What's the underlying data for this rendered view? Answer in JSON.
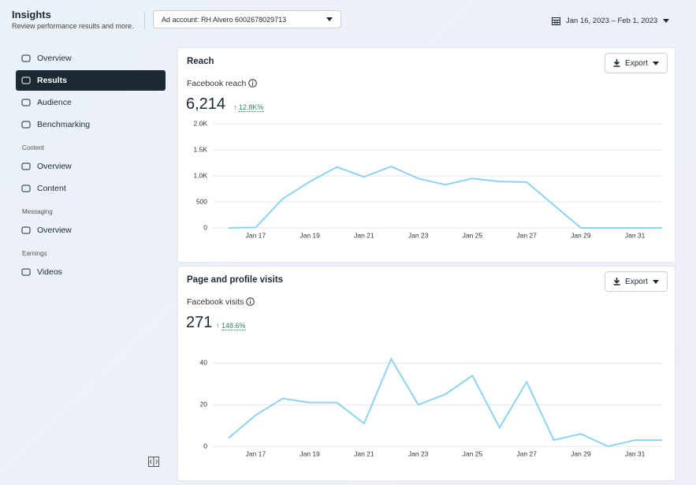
{
  "header": {
    "title": "Insights",
    "subtitle": "Review performance results and more.",
    "ad_account": "Ad account: RH Alvero 6002678029713",
    "date_range": "Jan 16, 2023 – Feb 1, 2023"
  },
  "sidebar": {
    "selected": "Results",
    "sections": [
      {
        "items": [
          "Overview",
          "Results",
          "Audience",
          "Benchmarking"
        ]
      },
      {
        "heading": "Content",
        "items": [
          "Overview",
          "Content"
        ]
      },
      {
        "heading": "Messaging",
        "items": [
          "Overview"
        ]
      },
      {
        "heading": "Earnings",
        "items": [
          "Videos"
        ]
      }
    ]
  },
  "chart_data": [
    {
      "type": "line",
      "title": "Reach",
      "export": "Export",
      "subtitle": "Facebook reach",
      "total": "6,214",
      "change": "12.8K%",
      "color": "#8dd3f2",
      "grid": true,
      "categories": [
        null,
        "Jan 17",
        null,
        "Jan 19",
        null,
        "Jan 21",
        null,
        "Jan 23",
        null,
        "Jan 25",
        null,
        "Jan 27",
        null,
        "Jan 29",
        null,
        "Jan 31",
        null
      ],
      "values": [
        0,
        10,
        560,
        890,
        1170,
        980,
        1180,
        950,
        830,
        950,
        890,
        880,
        440,
        0,
        0,
        0,
        0
      ],
      "ylim": [
        0,
        2000
      ],
      "yticks": [
        0,
        500,
        {
          "value": 1000,
          "label": "1.0K"
        },
        {
          "value": 1500,
          "label": "1.5K"
        },
        {
          "value": 2000,
          "label": "2.0K"
        }
      ]
    },
    {
      "type": "line",
      "title": "Page and profile visits",
      "export": "Export",
      "subtitle": "Facebook visits",
      "total": "271",
      "change": "148.6%",
      "color": "#8dd3f2",
      "grid": true,
      "categories": [
        null,
        "Jan 17",
        null,
        "Jan 19",
        null,
        "Jan 21",
        null,
        "Jan 23",
        null,
        "Jan 25",
        null,
        "Jan 27",
        null,
        "Jan 29",
        null,
        "Jan 31",
        null
      ],
      "values": [
        4,
        15,
        23,
        21,
        21,
        11,
        42,
        20,
        25,
        34,
        9,
        31,
        3,
        6,
        0,
        3,
        3
      ],
      "ylim": [
        0,
        50
      ],
      "yticks": [
        0,
        20,
        40
      ]
    }
  ]
}
